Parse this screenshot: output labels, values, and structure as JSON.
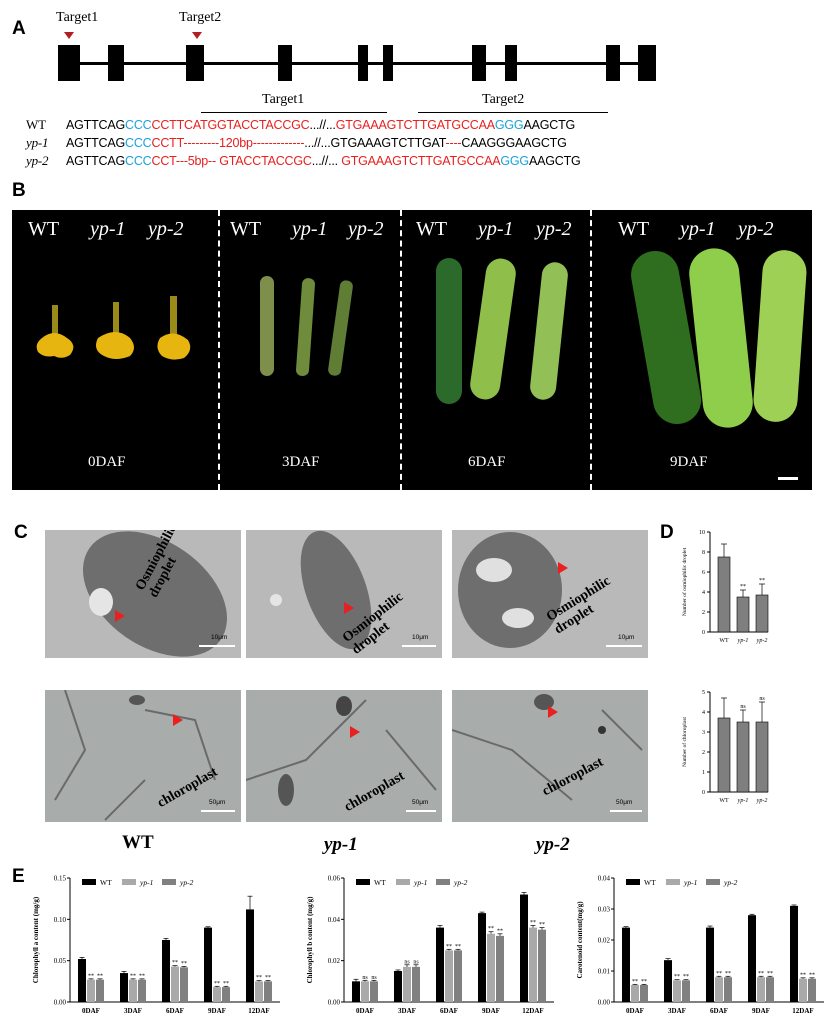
{
  "panels": {
    "a": "A",
    "b": "B",
    "c": "C",
    "d": "D",
    "e": "E"
  },
  "panel_a": {
    "target1_marker": "Target1",
    "target2_marker": "Target2",
    "target1_bracket": "Target1",
    "target2_bracket": "Target2",
    "rows": [
      {
        "label": "WT",
        "segments": [
          {
            "t": "AGTTCAG",
            "c": "k"
          },
          {
            "t": "CCC",
            "c": "b"
          },
          {
            "t": "CCTTCATGGTACCTACCGC",
            "c": "r"
          },
          {
            "t": "...//...",
            "c": "k"
          },
          {
            "t": "GTGAAAGTCTTGATGCCAA",
            "c": "r"
          },
          {
            "t": "GGG",
            "c": "b"
          },
          {
            "t": "AAGCTG",
            "c": "k"
          }
        ]
      },
      {
        "label": "yp-1",
        "segments": [
          {
            "t": "AGTTCAG",
            "c": "k"
          },
          {
            "t": "CCC",
            "c": "b"
          },
          {
            "t": "CCTT---------120bp-------------",
            "c": "r"
          },
          {
            "t": "...//...GTGAAAGTCTTGAT",
            "c": "k"
          },
          {
            "t": "----",
            "c": "r"
          },
          {
            "t": "CAAGGGAAGCTG",
            "c": "k"
          }
        ]
      },
      {
        "label": "yp-2",
        "segments": [
          {
            "t": "AGTTCAG",
            "c": "k"
          },
          {
            "t": "CCC",
            "c": "b"
          },
          {
            "t": "CCT---5bp-- GTACCTACCGC",
            "c": "r"
          },
          {
            "t": "...//... ",
            "c": "k"
          },
          {
            "t": "GTGAAAGTCTTGATGCCAA",
            "c": "r"
          },
          {
            "t": "GGG",
            "c": "b"
          },
          {
            "t": "AAGCTG",
            "c": "k"
          }
        ]
      }
    ]
  },
  "panel_b": {
    "genotypes": [
      "WT",
      "yp-1",
      "yp-2"
    ],
    "days": [
      "0DAF",
      "3DAF",
      "6DAF",
      "9DAF"
    ]
  },
  "panel_c": {
    "scale_top": "10μm",
    "scale_bottom": "50μm",
    "osmio_labels": [
      "Osmiophilic\ndroplet",
      "Osmiophilic\ndroplet",
      "Osmiophilic\ndroplet"
    ],
    "chloro_labels": [
      "chloroplast",
      "chloroplast",
      "chloroplast"
    ],
    "genotype_captions": [
      "WT",
      "yp-1",
      "yp-2"
    ]
  },
  "chart_data": [
    {
      "id": "D-top",
      "type": "bar",
      "categories": [
        "WT",
        "yp-1",
        "yp-2"
      ],
      "values": [
        7.5,
        3.5,
        3.7
      ],
      "errors": [
        1.3,
        0.7,
        1.1
      ],
      "significance": [
        "",
        "**",
        "**"
      ],
      "ylabel": "Number of osmiophilic droplet",
      "ylim": [
        0,
        10
      ],
      "yticks": [
        0,
        2,
        4,
        6,
        8,
        10
      ]
    },
    {
      "id": "D-bottom",
      "type": "bar",
      "categories": [
        "WT",
        "yp-1",
        "yp-2"
      ],
      "values": [
        3.7,
        3.5,
        3.5
      ],
      "errors": [
        1.0,
        0.6,
        1.0
      ],
      "significance": [
        "",
        "ns",
        "ns"
      ],
      "ylabel": "Number of chloroplast",
      "ylim": [
        0,
        5
      ],
      "yticks": [
        0,
        1,
        2,
        3,
        4,
        5
      ]
    },
    {
      "id": "E-1",
      "type": "bar",
      "categories": [
        "0DAF",
        "3DAF",
        "6DAF",
        "9DAF",
        "12DAF"
      ],
      "ylabel": "Chlorophyll a content (mg/g)",
      "ylim": [
        0,
        0.15
      ],
      "yticks": [
        0.0,
        0.05,
        0.1,
        0.15
      ],
      "legend": [
        "WT",
        "yp-1",
        "yp-2"
      ],
      "series": [
        {
          "name": "WT",
          "values": [
            0.052,
            0.035,
            0.075,
            0.09,
            0.112
          ],
          "errors": [
            0.002,
            0.002,
            0.002,
            0.001,
            0.016
          ]
        },
        {
          "name": "yp-1",
          "values": [
            0.027,
            0.027,
            0.043,
            0.018,
            0.025
          ],
          "errors": [
            0.001,
            0.001,
            0.001,
            0.001,
            0.001
          ]
        },
        {
          "name": "yp-2",
          "values": [
            0.027,
            0.027,
            0.042,
            0.018,
            0.025
          ],
          "errors": [
            0.001,
            0.001,
            0.001,
            0.001,
            0.001
          ]
        }
      ],
      "significance": [
        [
          "**",
          "**"
        ],
        [
          "**",
          "**"
        ],
        [
          "**",
          "**"
        ],
        [
          "**",
          "**"
        ],
        [
          "**",
          "**"
        ]
      ]
    },
    {
      "id": "E-2",
      "type": "bar",
      "categories": [
        "0DAF",
        "3DAF",
        "6DAF",
        "9DAF",
        "12DAF"
      ],
      "ylabel": "Chlorophyll b content (mg/g)",
      "ylim": [
        0,
        0.06
      ],
      "yticks": [
        0.0,
        0.02,
        0.04,
        0.06
      ],
      "legend": [
        "WT",
        "yp-1",
        "yp-2"
      ],
      "series": [
        {
          "name": "WT",
          "values": [
            0.01,
            0.015,
            0.036,
            0.043,
            0.052
          ],
          "errors": [
            0.001,
            0.0005,
            0.001,
            0.0005,
            0.001
          ]
        },
        {
          "name": "yp-1",
          "values": [
            0.01,
            0.017,
            0.025,
            0.033,
            0.036
          ],
          "errors": [
            0.0005,
            0.001,
            0.0005,
            0.001,
            0.001
          ]
        },
        {
          "name": "yp-2",
          "values": [
            0.01,
            0.017,
            0.025,
            0.032,
            0.035
          ],
          "errors": [
            0.0005,
            0.001,
            0.0005,
            0.001,
            0.001
          ]
        }
      ],
      "significance": [
        [
          "ns",
          "ns"
        ],
        [
          "ns",
          "ns"
        ],
        [
          "**",
          "**"
        ],
        [
          "**",
          "**"
        ],
        [
          "**",
          "**"
        ]
      ]
    },
    {
      "id": "E-3",
      "type": "bar",
      "categories": [
        "0DAF",
        "3DAF",
        "6DAF",
        "9DAF",
        "12DAF"
      ],
      "ylabel": "Carotenoid content(mg/g)",
      "ylim": [
        0,
        0.04
      ],
      "yticks": [
        0.0,
        0.01,
        0.02,
        0.03,
        0.04
      ],
      "legend": [
        "WT",
        "yp-1",
        "yp-2"
      ],
      "series": [
        {
          "name": "WT",
          "values": [
            0.024,
            0.0135,
            0.024,
            0.028,
            0.031
          ],
          "errors": [
            0.0003,
            0.0005,
            0.0005,
            0.0003,
            0.0003
          ]
        },
        {
          "name": "yp-1",
          "values": [
            0.0055,
            0.007,
            0.008,
            0.008,
            0.0075
          ],
          "errors": [
            0.0002,
            0.0002,
            0.0003,
            0.0003,
            0.0003
          ]
        },
        {
          "name": "yp-2",
          "values": [
            0.0055,
            0.007,
            0.008,
            0.008,
            0.0075
          ],
          "errors": [
            0.0002,
            0.0002,
            0.0003,
            0.0003,
            0.0003
          ]
        }
      ],
      "significance": [
        [
          "**",
          "**"
        ],
        [
          "**",
          "**"
        ],
        [
          "**",
          "**"
        ],
        [
          "**",
          "**"
        ],
        [
          "**",
          "**"
        ]
      ]
    }
  ],
  "colors": {
    "wt": "#000000",
    "yp1": "#a9a9a9",
    "yp2": "#808080",
    "bar_d": "#7f7f7f",
    "red": "#e8201f",
    "blue": "#1aa3d9"
  }
}
